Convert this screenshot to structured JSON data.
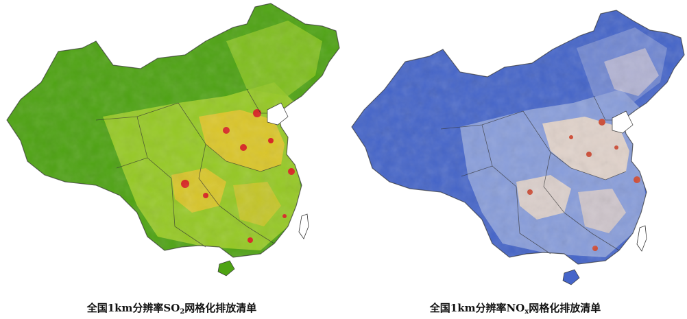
{
  "maps": [
    {
      "caption_prefix": "全国1km分辨率SO",
      "caption_sub": "2",
      "caption_suffix": "网格化排放清单",
      "colors": {
        "base": "#4ea313",
        "mid": "#a9d22a",
        "high": "#e8c62a",
        "peak": "#d8231f"
      }
    },
    {
      "caption_prefix": "全国1km分辨率NO",
      "caption_sub": "x",
      "caption_suffix": "网格化排放清单",
      "colors": {
        "base": "#4565c9",
        "mid": "#9fb0df",
        "high": "#ead8c8",
        "peak": "#cf4a33"
      }
    }
  ]
}
